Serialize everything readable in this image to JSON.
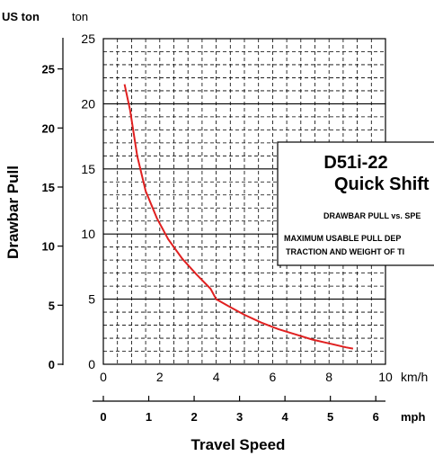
{
  "chart_data": {
    "type": "line",
    "title": "D51i-22",
    "subtitle": "Quick Shift",
    "annotations": [
      "DRAWBAR PULL vs. SPE",
      "MAXIMUM USABLE PULL DEP",
      "TRACTION AND WEIGHT OF TI"
    ],
    "xlabel": "Travel Speed",
    "ylabel": "Drawbar Pull",
    "x_primary": {
      "unit": "km/h",
      "range": [
        0,
        10
      ],
      "ticks": [
        "0",
        "2",
        "4",
        "6",
        "8",
        "10"
      ]
    },
    "x_secondary": {
      "unit": "mph",
      "range": [
        0,
        6.2137
      ],
      "ticks": [
        "0",
        "1",
        "2",
        "3",
        "4",
        "5",
        "6"
      ]
    },
    "y_primary": {
      "unit": "ton",
      "range": [
        0,
        25
      ],
      "ticks": [
        "0",
        "5",
        "10",
        "15",
        "20",
        "25"
      ]
    },
    "y_secondary": {
      "unit": "US ton",
      "range": [
        0,
        27.56
      ],
      "ticks": [
        "0",
        "5",
        "10",
        "15",
        "20",
        "25"
      ]
    },
    "grid": true,
    "series": [
      {
        "color": "#e02020",
        "x": [
          0.75,
          0.95,
          1.2,
          1.5,
          1.9,
          2.3,
          2.8,
          3.3,
          3.8,
          4.0,
          4.4,
          5.0,
          5.6,
          6.2,
          6.8,
          7.4,
          8.0,
          8.6,
          8.85
        ],
        "y": [
          21.5,
          19.5,
          16.0,
          13.3,
          11.2,
          9.6,
          8.1,
          6.9,
          5.8,
          5.0,
          4.5,
          3.8,
          3.2,
          2.7,
          2.3,
          1.9,
          1.6,
          1.3,
          1.2
        ]
      }
    ]
  }
}
